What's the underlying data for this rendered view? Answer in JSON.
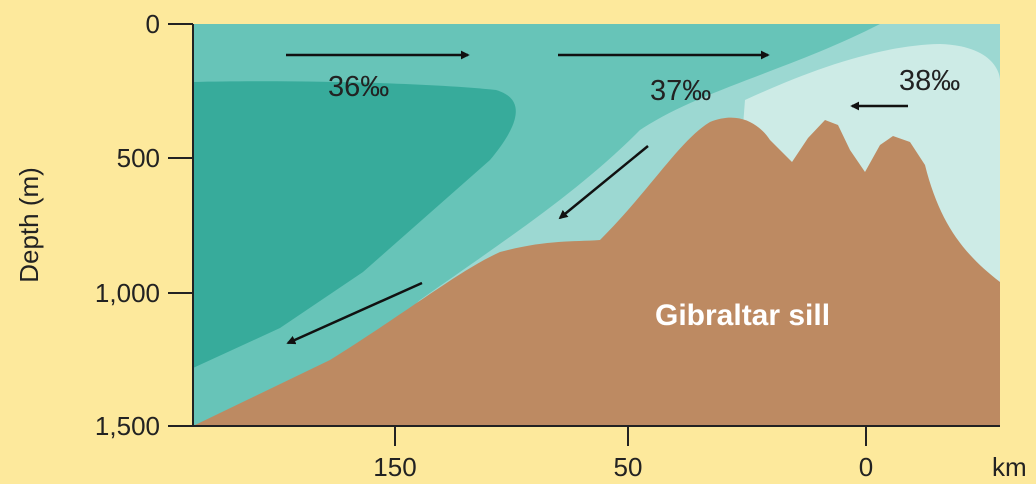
{
  "colors": {
    "background": "#fde99c",
    "salinity_36_dark": "#37ab9b",
    "salinity_36_37": "#67c4b8",
    "salinity_37": "#9cd8d2",
    "salinity_38": "#cdebe6",
    "sill": "#bd8a62",
    "axis": "#222222",
    "sill_label": "#ffffff"
  },
  "axes": {
    "y_title": "Depth (m)",
    "y_ticks": [
      "0",
      "500",
      "1,000",
      "1,500"
    ],
    "x_ticks": [
      "150",
      "50",
      "0"
    ],
    "x_unit": "km"
  },
  "labels": {
    "salinity_left": "36‰",
    "salinity_middle": "37‰",
    "salinity_right": "38‰",
    "sill": "Gibraltar sill"
  },
  "arrows": [
    "surface-inflow-arrow",
    "surface-inflow-arrow",
    "deep-outflow-arrow",
    "deep-outflow-arrow",
    "mediterranean-outflow-arrow"
  ]
}
